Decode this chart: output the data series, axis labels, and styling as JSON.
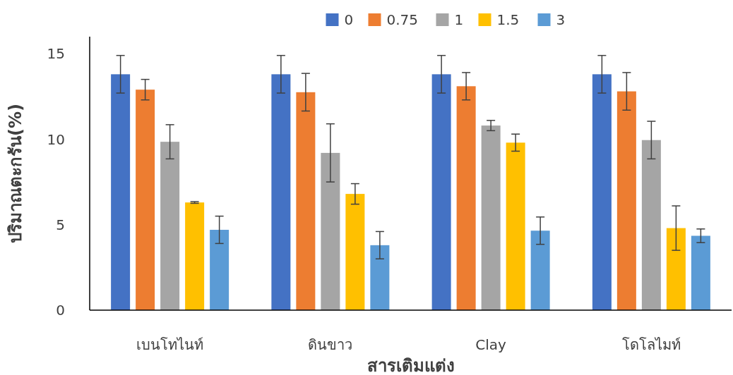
{
  "chart_data": {
    "type": "bar",
    "xlabel": "สารเติมแต่ง",
    "ylabel": "ปริมาณตะกรัน(%)",
    "categories": [
      "เบนโทไนท์",
      "ดินขาว",
      "Clay",
      "โดโลไมท์"
    ],
    "series": [
      {
        "name": "0",
        "color": "#4472c4",
        "values": [
          13.8,
          13.8,
          13.8,
          13.8
        ],
        "errors": [
          1.1,
          1.1,
          1.1,
          1.1
        ]
      },
      {
        "name": "0.75",
        "color": "#ed7d31",
        "values": [
          12.9,
          12.75,
          13.1,
          12.8
        ],
        "errors": [
          0.6,
          1.1,
          0.8,
          1.1
        ]
      },
      {
        "name": "1",
        "color": "#a5a5a5",
        "values": [
          9.85,
          9.2,
          10.8,
          9.95
        ],
        "errors": [
          1.0,
          1.7,
          0.3,
          1.1
        ]
      },
      {
        "name": "1.5",
        "color": "#ffc000",
        "values": [
          6.3,
          6.8,
          9.8,
          4.8
        ],
        "errors": [
          0.05,
          0.6,
          0.5,
          1.3
        ]
      },
      {
        "name": "3",
        "color": "#5b9bd5",
        "values": [
          4.7,
          3.8,
          4.65,
          4.35
        ],
        "errors": [
          0.8,
          0.8,
          0.8,
          0.4
        ]
      }
    ],
    "ylim": [
      0,
      16
    ],
    "yticks": [
      0,
      5,
      10,
      15
    ],
    "legend": "top",
    "grid": false
  }
}
